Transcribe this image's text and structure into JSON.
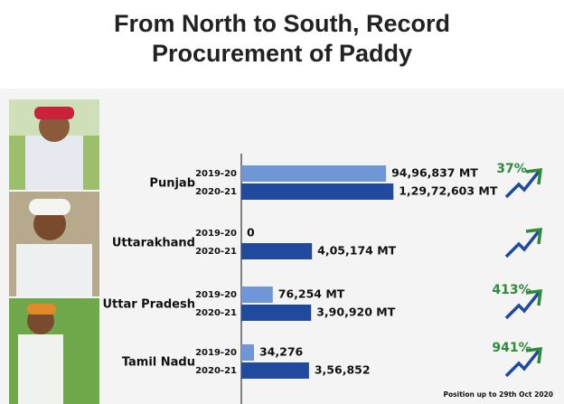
{
  "chart_data": {
    "type": "bar",
    "orientation": "horizontal",
    "title": "From North to South, Record Procurement of Paddy",
    "categories": [
      "Punjab",
      "Uttarakhand",
      "Uttar Pradesh",
      "Tamil Nadu"
    ],
    "series": [
      {
        "name": "2019-20",
        "color": "#6f96d6",
        "values": [
          9496837,
          0,
          76254,
          34276
        ],
        "value_labels": [
          "94,96,837 MT",
          "0",
          "76,254 MT",
          "34,276"
        ]
      },
      {
        "name": "2020-21",
        "color": "#1f4a9e",
        "values": [
          12972603,
          405174,
          390920,
          356852
        ],
        "value_labels": [
          "1,29,72,603 MT",
          "4,05,174 MT",
          "3,90,920 MT",
          "3,56,852"
        ]
      }
    ],
    "log_scale": true,
    "xlim": [
      20000,
      15000000
    ],
    "growth": {
      "values": [
        37,
        null,
        413,
        941
      ],
      "value_labels": [
        "37%",
        null,
        "413%",
        "941%"
      ],
      "color": "#2e8b3a"
    },
    "note": "Position up to 29th Oct 2020"
  }
}
